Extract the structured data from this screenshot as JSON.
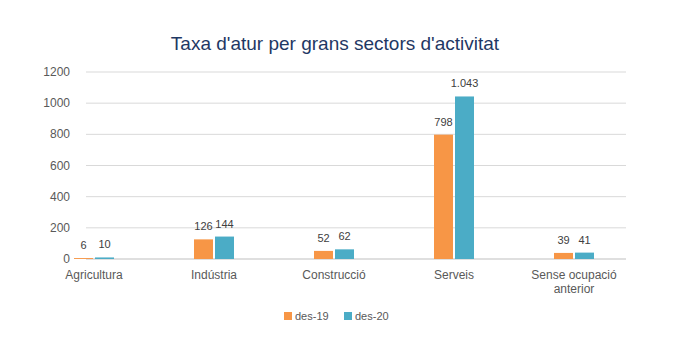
{
  "chart_data": {
    "type": "bar",
    "title": "Taxa d'atur per grans sectors d'activitat",
    "categories": [
      "Agricultura",
      "Indústria",
      "Construcció",
      "Serveis",
      "Sense ocupació anterior"
    ],
    "series": [
      {
        "name": "des-19",
        "color": "#f79646",
        "values": [
          6,
          126,
          52,
          798,
          39
        ]
      },
      {
        "name": "des-20",
        "color": "#4bacc6",
        "values": [
          10,
          144,
          62,
          1043,
          41
        ],
        "value_labels": [
          "10",
          "144",
          "62",
          "1.043",
          "41"
        ]
      }
    ],
    "ylim": [
      0,
      1200
    ],
    "yticks": [
      0,
      200,
      400,
      600,
      800,
      1000,
      1200
    ],
    "grid": true,
    "legend": "bottom",
    "data_labels": true
  }
}
